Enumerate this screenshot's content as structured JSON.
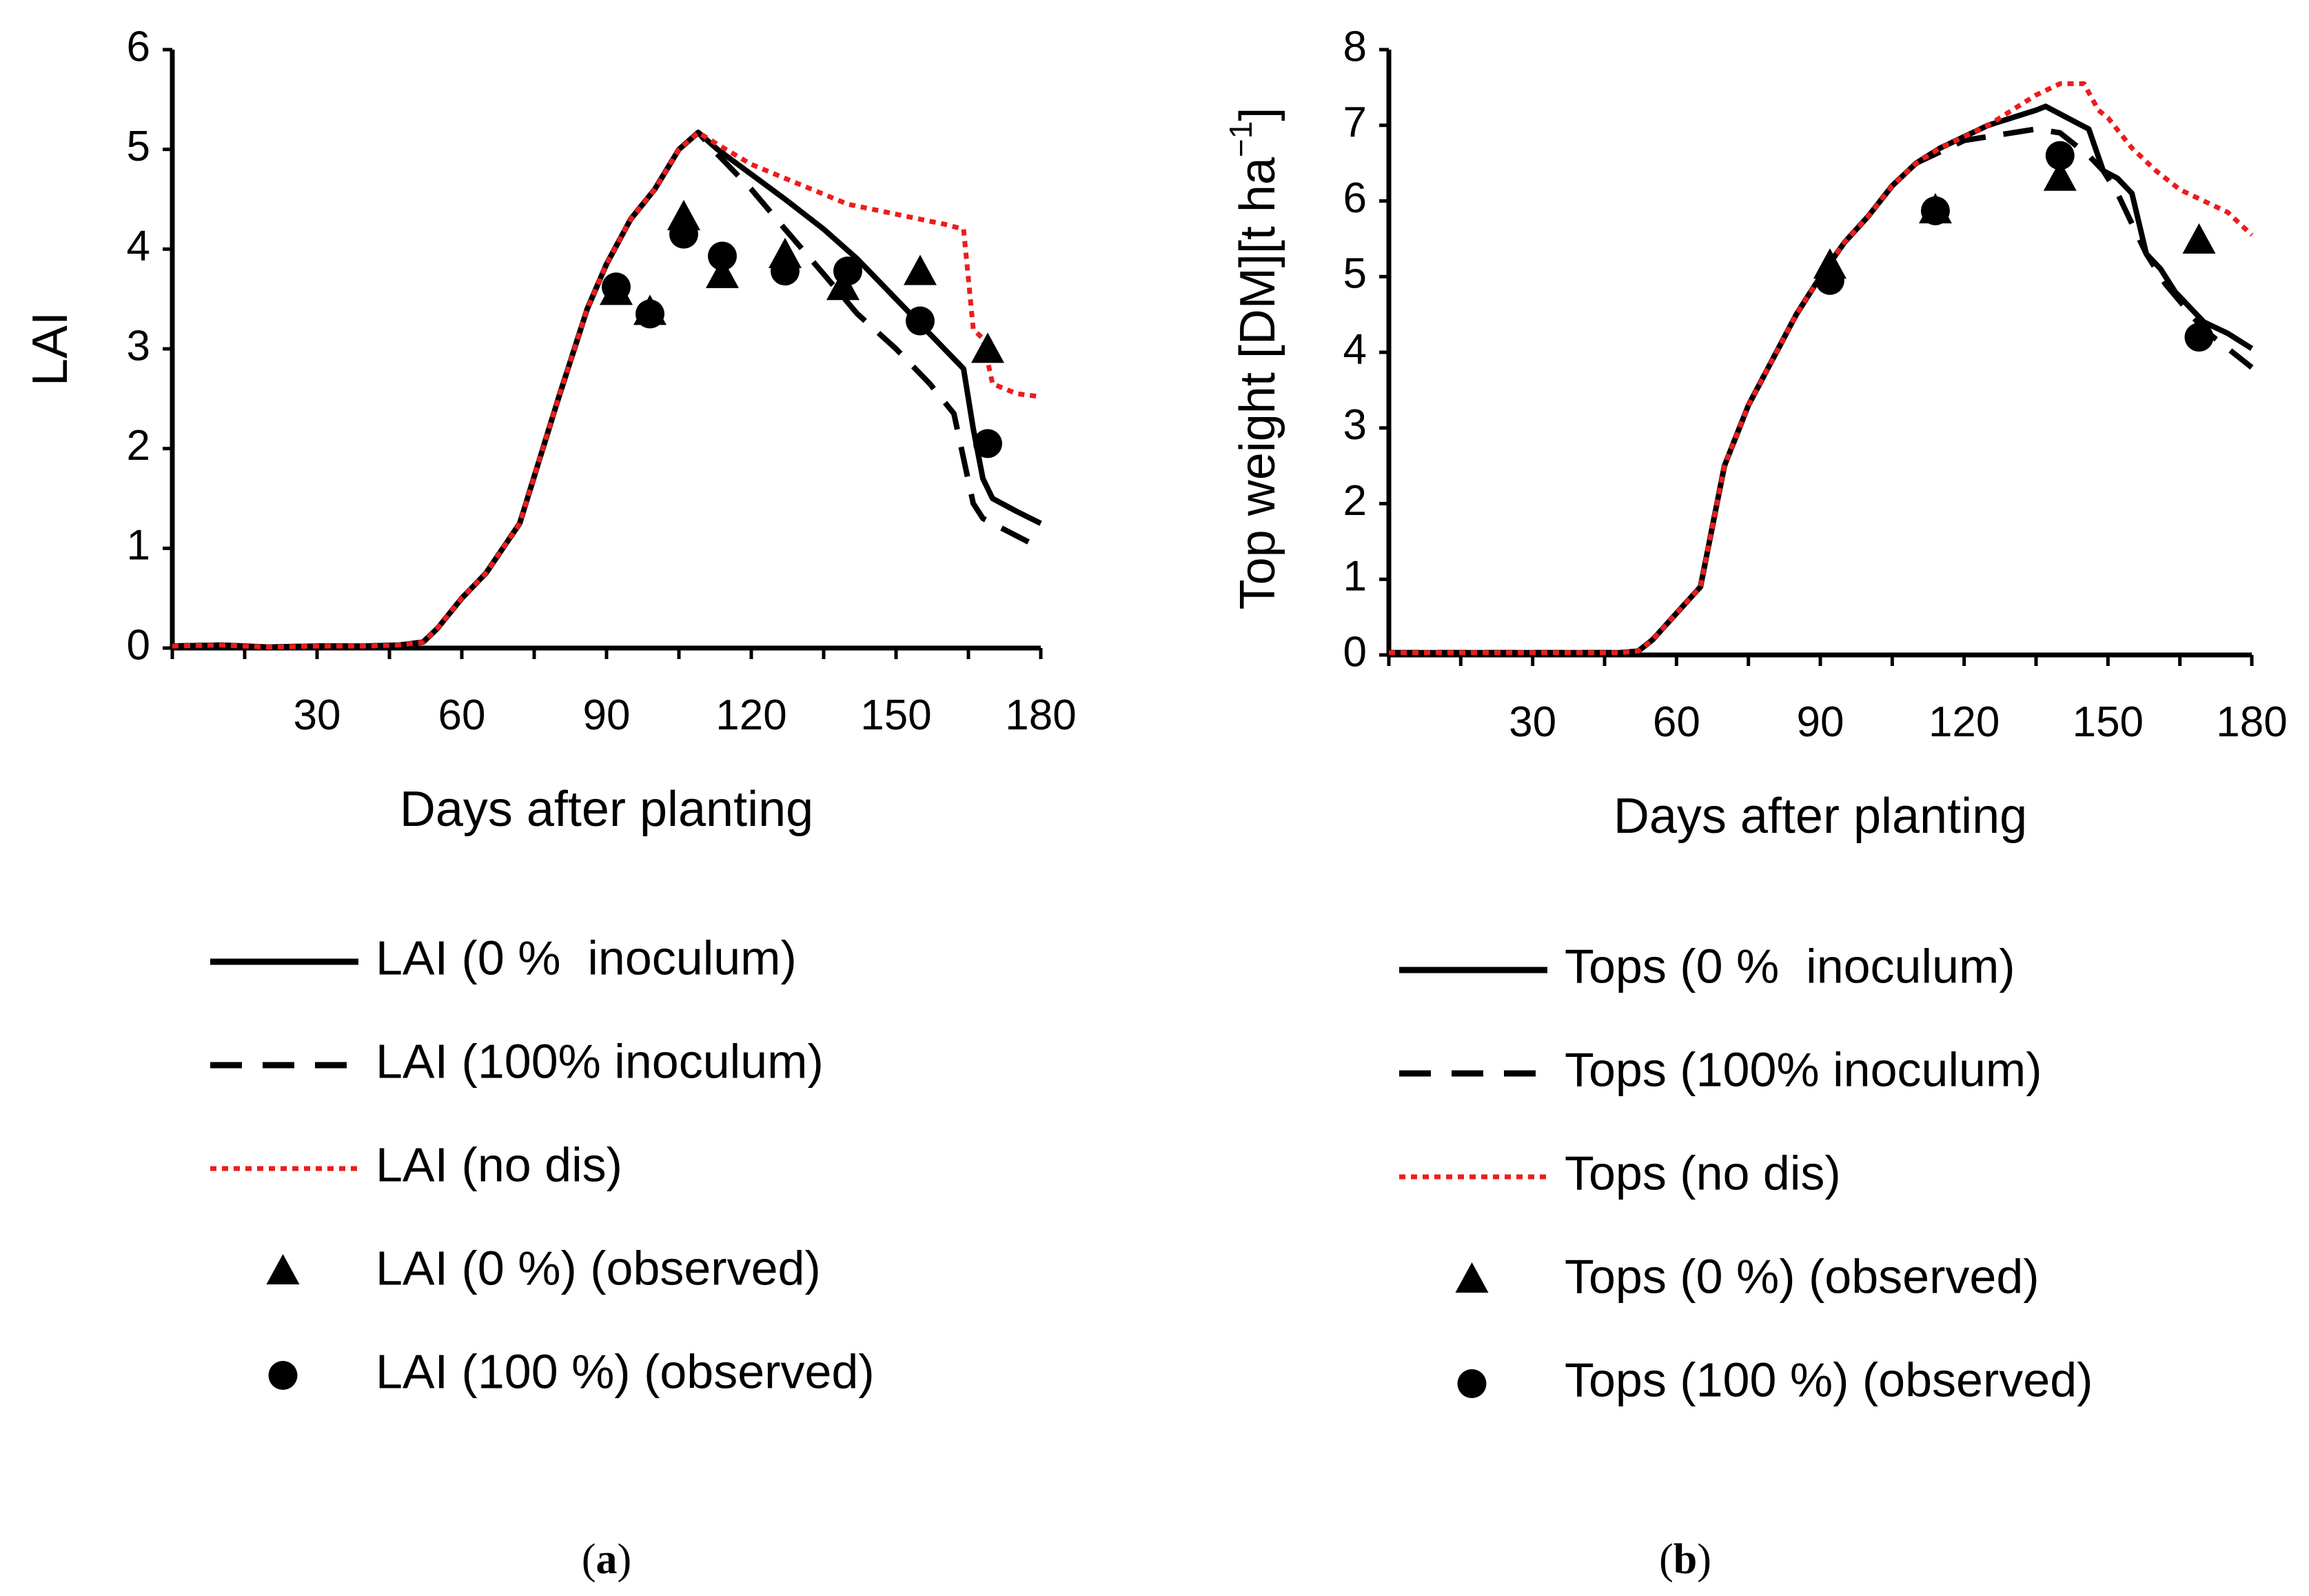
{
  "colors": {
    "black": "#000000",
    "red": "#ee1c1c"
  },
  "chart_data": [
    {
      "id": "a",
      "type": "line",
      "caption_open": "(",
      "caption_letter": "a",
      "caption_close": ")",
      "xlabel": "Days after planting",
      "ylabel": "LAI",
      "xlim": [
        0,
        180
      ],
      "ylim": [
        0,
        6
      ],
      "xticks": [
        30,
        60,
        90,
        120,
        150,
        180
      ],
      "yticks": [
        0,
        1,
        2,
        3,
        4,
        5,
        6
      ],
      "series": [
        {
          "name": "LAI (0 %  inoculum)",
          "style": "solid",
          "color": "#000000",
          "x": [
            0,
            10,
            20,
            30,
            40,
            47,
            52,
            55,
            60,
            65,
            72,
            80,
            86,
            90,
            95,
            100,
            105,
            109,
            113,
            120,
            127,
            135,
            142,
            150,
            157,
            164,
            165,
            166,
            167,
            168,
            170,
            175,
            180
          ],
          "y": [
            0.02,
            0.03,
            0.01,
            0.02,
            0.02,
            0.03,
            0.06,
            0.2,
            0.5,
            0.75,
            1.25,
            2.5,
            3.4,
            3.85,
            4.3,
            4.6,
            5.0,
            5.17,
            5.0,
            4.75,
            4.5,
            4.2,
            3.9,
            3.5,
            3.15,
            2.8,
            2.5,
            2.2,
            1.95,
            1.7,
            1.5,
            1.37,
            1.25
          ]
        },
        {
          "name": "LAI (100% inoculum)",
          "style": "dashed",
          "color": "#000000",
          "x": [
            0,
            10,
            20,
            30,
            40,
            47,
            52,
            55,
            60,
            65,
            72,
            80,
            86,
            90,
            95,
            100,
            105,
            109,
            113,
            120,
            127,
            135,
            142,
            150,
            157,
            162,
            164,
            166,
            168,
            172,
            176,
            180
          ],
          "y": [
            0.02,
            0.03,
            0.01,
            0.02,
            0.02,
            0.03,
            0.06,
            0.2,
            0.5,
            0.75,
            1.25,
            2.5,
            3.4,
            3.85,
            4.3,
            4.6,
            5.0,
            5.17,
            4.95,
            4.6,
            4.2,
            3.75,
            3.35,
            3.0,
            2.65,
            2.35,
            1.9,
            1.45,
            1.3,
            1.2,
            1.1,
            1.0
          ]
        },
        {
          "name": "LAI (no dis)",
          "style": "dotted",
          "color": "#ee1c1c",
          "x": [
            0,
            10,
            20,
            30,
            40,
            47,
            52,
            55,
            60,
            65,
            72,
            80,
            86,
            90,
            95,
            100,
            105,
            109,
            113,
            120,
            130,
            140,
            150,
            160,
            164,
            165,
            166,
            168,
            170,
            175,
            180
          ],
          "y": [
            0.02,
            0.03,
            0.01,
            0.02,
            0.02,
            0.03,
            0.06,
            0.2,
            0.5,
            0.75,
            1.25,
            2.5,
            3.4,
            3.85,
            4.3,
            4.6,
            5.0,
            5.17,
            5.05,
            4.85,
            4.65,
            4.45,
            4.35,
            4.25,
            4.2,
            3.7,
            3.2,
            3.1,
            2.65,
            2.55,
            2.52
          ]
        },
        {
          "name": "LAI (0 %) (observed)",
          "style": "triangle",
          "color": "#000000",
          "x": [
            92,
            99,
            106,
            114,
            127,
            139,
            155,
            169
          ],
          "y": [
            3.55,
            3.35,
            4.3,
            3.72,
            3.92,
            3.6,
            3.75,
            2.97
          ]
        },
        {
          "name": "LAI (100 %) (observed)",
          "style": "circle",
          "color": "#000000",
          "x": [
            92,
            99,
            106,
            114,
            127,
            140,
            155,
            169
          ],
          "y": [
            3.62,
            3.35,
            4.15,
            3.93,
            3.78,
            3.78,
            3.28,
            2.05
          ]
        }
      ]
    },
    {
      "id": "b",
      "type": "line",
      "caption_open": "(",
      "caption_letter": "b",
      "caption_close": ")",
      "xlabel": "Days after planting",
      "ylabel_main": "Top weight [DM][t ha",
      "ylabel_sup": "−1",
      "ylabel_end": "]",
      "xlim": [
        0,
        180
      ],
      "ylim": [
        0,
        8
      ],
      "xticks": [
        30,
        60,
        90,
        120,
        150,
        180
      ],
      "yticks": [
        0,
        1,
        2,
        3,
        4,
        5,
        6,
        7,
        8
      ],
      "series": [
        {
          "name": "Tops (0 %  inoculum)",
          "style": "solid",
          "color": "#000000",
          "x": [
            0,
            20,
            40,
            48,
            52,
            55,
            60,
            65,
            70,
            75,
            80,
            85,
            90,
            95,
            100,
            105,
            110,
            115,
            120,
            125,
            130,
            135,
            137,
            140,
            143,
            146,
            149,
            152,
            155,
            158,
            161,
            164,
            167,
            170,
            175,
            180
          ],
          "y": [
            0.03,
            0.03,
            0.03,
            0.03,
            0.05,
            0.2,
            0.55,
            0.9,
            2.5,
            3.3,
            3.9,
            4.5,
            5.0,
            5.45,
            5.8,
            6.2,
            6.5,
            6.7,
            6.85,
            7.0,
            7.1,
            7.2,
            7.25,
            7.15,
            7.05,
            6.95,
            6.4,
            6.3,
            6.1,
            5.3,
            5.1,
            4.8,
            4.6,
            4.4,
            4.25,
            4.05
          ]
        },
        {
          "name": "Tops (100% inoculum)",
          "style": "dashed",
          "color": "#000000",
          "x": [
            0,
            20,
            40,
            48,
            52,
            55,
            60,
            65,
            70,
            75,
            80,
            85,
            90,
            95,
            100,
            105,
            110,
            115,
            120,
            125,
            130,
            135,
            140,
            143,
            146,
            149,
            152,
            155,
            158,
            162,
            166,
            170,
            175,
            180
          ],
          "y": [
            0.03,
            0.03,
            0.03,
            0.03,
            0.05,
            0.2,
            0.55,
            0.9,
            2.5,
            3.3,
            3.9,
            4.5,
            5.0,
            5.45,
            5.8,
            6.2,
            6.5,
            6.65,
            6.8,
            6.85,
            6.9,
            6.95,
            6.9,
            6.75,
            6.6,
            6.4,
            6.1,
            5.7,
            5.3,
            4.9,
            4.6,
            4.3,
            4.05,
            3.8
          ]
        },
        {
          "name": "Tops (no dis)",
          "style": "dotted",
          "color": "#ee1c1c",
          "x": [
            0,
            20,
            40,
            48,
            52,
            55,
            60,
            65,
            70,
            75,
            80,
            85,
            90,
            95,
            100,
            105,
            110,
            115,
            120,
            125,
            130,
            135,
            140,
            145,
            148,
            150,
            155,
            160,
            165,
            170,
            175,
            180
          ],
          "y": [
            0.03,
            0.03,
            0.03,
            0.03,
            0.05,
            0.2,
            0.55,
            0.9,
            2.5,
            3.3,
            3.9,
            4.5,
            5.0,
            5.45,
            5.8,
            6.2,
            6.5,
            6.7,
            6.85,
            7.0,
            7.2,
            7.4,
            7.55,
            7.55,
            7.2,
            7.1,
            6.7,
            6.4,
            6.15,
            6.0,
            5.85,
            5.55
          ]
        },
        {
          "name": "Tops (0 %) (observed)",
          "style": "triangle",
          "color": "#000000",
          "x": [
            92,
            114,
            140,
            169
          ],
          "y": [
            5.12,
            5.85,
            6.28,
            5.45
          ]
        },
        {
          "name": "Tops (100 %) (observed)",
          "style": "circle",
          "color": "#000000",
          "x": [
            92,
            114,
            140,
            169
          ],
          "y": [
            4.95,
            5.87,
            6.6,
            4.2
          ]
        }
      ]
    }
  ]
}
